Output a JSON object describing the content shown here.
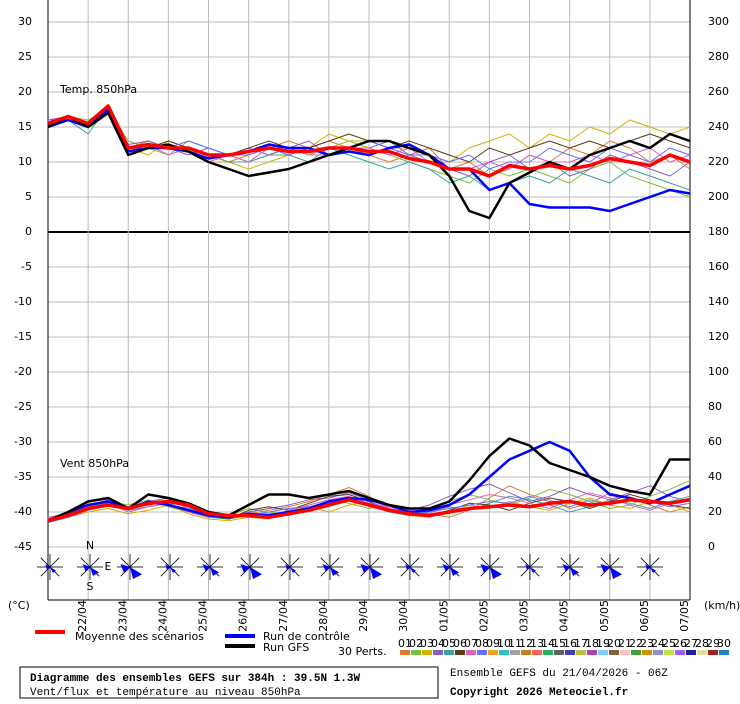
{
  "chart_data": {
    "type": "line",
    "title": "Diagramme des ensembles GEFS sur 384h : 39.5N 1.3W",
    "subtitle": "Vent/flux et température au niveau 850hPa",
    "run_info": "Ensemble GEFS du 21/04/2026 - 06Z",
    "copyright": "Copyright 2026 Meteociel.fr",
    "y_label": "(°C)",
    "y2_label": "(km/h)",
    "temp_label": "Temp. 850hPa",
    "wind_label": "Vent 850hPa",
    "compass": [
      "N",
      "E",
      "S"
    ],
    "perturbations_label": "30 Perts.",
    "x": [
      0,
      0.5,
      1,
      1.5,
      2,
      2.5,
      3,
      3.5,
      4,
      4.5,
      5,
      5.5,
      6,
      6.5,
      7,
      7.5,
      8,
      8.5,
      9,
      9.5,
      10,
      10.5,
      11,
      11.5,
      12,
      12.5,
      13,
      13.5,
      14,
      14.5,
      15,
      15.5,
      16
    ],
    "xlim": [
      0,
      16
    ],
    "xticks": [
      {
        "value": 1,
        "label": "22/04"
      },
      {
        "value": 2,
        "label": "23/04"
      },
      {
        "value": 3,
        "label": "24/04"
      },
      {
        "value": 4,
        "label": "25/04"
      },
      {
        "value": 5,
        "label": "26/04"
      },
      {
        "value": 6,
        "label": "27/04"
      },
      {
        "value": 7,
        "label": "28/04"
      },
      {
        "value": 8,
        "label": "29/04"
      },
      {
        "value": 9,
        "label": "30/04"
      },
      {
        "value": 10,
        "label": "01/05"
      },
      {
        "value": 11,
        "label": "02/05"
      },
      {
        "value": 12,
        "label": "03/05"
      },
      {
        "value": 13,
        "label": "04/05"
      },
      {
        "value": 14,
        "label": "05/05"
      },
      {
        "value": 15,
        "label": "06/05"
      },
      {
        "value": 16,
        "label": "07/05"
      }
    ],
    "ylim": [
      -45,
      30
    ],
    "yticks": [
      -45,
      -40,
      -35,
      -30,
      -25,
      -20,
      -15,
      -10,
      -5,
      0,
      5,
      10,
      15,
      20,
      25,
      30
    ],
    "y2lim": [
      0,
      300
    ],
    "y2ticks": [
      0,
      20,
      40,
      60,
      80,
      100,
      120,
      140,
      160,
      180,
      200,
      220,
      240,
      260,
      280,
      300
    ],
    "grid": true,
    "series": [
      {
        "name": "Moyenne des scénarios",
        "color": "#ff0000",
        "values": [
          15.5,
          16.5,
          15.5,
          18,
          12,
          12.5,
          12,
          12,
          11,
          11,
          11.5,
          12,
          11.5,
          11.5,
          12,
          12,
          11.5,
          11.5,
          10.5,
          10,
          9,
          9,
          8,
          9.5,
          9,
          9.5,
          9,
          9.5,
          10.5,
          10,
          9.5,
          11,
          10
        ],
        "wind_values": [
          15,
          18,
          22,
          24,
          22,
          25,
          26,
          24,
          19,
          18,
          18,
          17,
          19,
          21,
          24,
          27,
          24,
          21,
          19,
          18,
          20,
          22,
          23,
          24,
          23,
          25,
          26,
          24,
          25,
          27,
          26,
          25,
          27
        ]
      },
      {
        "name": "Run de contrôle",
        "color": "#0000ff",
        "values": [
          15,
          16,
          15,
          17.5,
          11.5,
          12,
          12,
          11.5,
          10.5,
          11,
          11.5,
          12.5,
          12,
          12,
          11,
          11.5,
          11,
          12,
          12.5,
          11,
          9,
          9,
          6,
          7,
          4,
          3.5,
          3.5,
          3.5,
          3,
          4,
          5,
          6,
          5.5
        ],
        "wind_values": [
          15,
          20,
          24,
          26,
          22,
          26,
          24,
          21,
          18,
          17,
          19,
          18,
          20,
          22,
          26,
          28,
          27,
          24,
          20,
          21,
          24,
          30,
          40,
          50,
          55,
          60,
          55,
          40,
          30,
          28,
          25,
          30,
          35
        ]
      },
      {
        "name": "Run GFS",
        "color": "#000000",
        "values": [
          15,
          16.5,
          15,
          17,
          11,
          12,
          12.5,
          11.5,
          10,
          9,
          8,
          8.5,
          9,
          10,
          11,
          12,
          13,
          13,
          12,
          11,
          8,
          3,
          2,
          7,
          8.5,
          10,
          9,
          11,
          12,
          13,
          12,
          14,
          13
        ],
        "wind_values": [
          15,
          20,
          26,
          28,
          22,
          30,
          28,
          25,
          20,
          18,
          24,
          30,
          30,
          28,
          30,
          32,
          28,
          24,
          22,
          22,
          26,
          38,
          52,
          62,
          58,
          48,
          44,
          40,
          35,
          32,
          30,
          50,
          50
        ]
      }
    ],
    "perturbations": [
      {
        "name": "01",
        "color": "#e07b30",
        "values": [
          15,
          16,
          15,
          18,
          12,
          13,
          12,
          12,
          11,
          10,
          11,
          12,
          13,
          12,
          13,
          12,
          11,
          10,
          11,
          12,
          9,
          10,
          8,
          9,
          11,
          10,
          12,
          11,
          13,
          12,
          10,
          11,
          9
        ],
        "wind_values": [
          16,
          19,
          23,
          25,
          22,
          24,
          27,
          22,
          18,
          16,
          19,
          21,
          23,
          26,
          30,
          34,
          29,
          22,
          20,
          19,
          17,
          21,
          28,
          35,
          30,
          27,
          22,
          25,
          31,
          28,
          24,
          20,
          23
        ]
      },
      {
        "name": "02",
        "color": "#7fbf3f",
        "values": [
          15.5,
          16.5,
          16,
          17.5,
          13,
          12,
          11,
          13,
          12,
          11,
          10,
          11,
          12,
          11,
          12,
          13,
          12,
          11,
          10,
          9,
          8,
          7,
          9,
          8,
          9,
          8,
          7,
          9,
          10,
          8,
          7,
          6,
          5
        ],
        "wind_values": [
          14,
          18,
          21,
          26,
          24,
          27,
          23,
          20,
          17,
          18,
          22,
          20,
          18,
          24,
          27,
          25,
          22,
          24,
          19,
          21,
          26,
          30,
          27,
          24,
          28,
          33,
          30,
          26,
          22,
          24,
          29,
          33,
          38
        ]
      },
      {
        "name": "03",
        "color": "#d4b000",
        "values": [
          15,
          16,
          15,
          17,
          12,
          11,
          13,
          12,
          10,
          10,
          9,
          10,
          11,
          12,
          14,
          13,
          13,
          12,
          12,
          11,
          10,
          12,
          13,
          14,
          12,
          14,
          13,
          15,
          14,
          16,
          15,
          14,
          15
        ],
        "wind_values": [
          15,
          17,
          20,
          22,
          19,
          21,
          24,
          19,
          16,
          15,
          17,
          16,
          21,
          23,
          20,
          24,
          26,
          22,
          18,
          17,
          20,
          24,
          22,
          26,
          23,
          21,
          25,
          28,
          24,
          22,
          26,
          24,
          20
        ]
      },
      {
        "name": "04",
        "color": "#8a5cc0",
        "values": [
          16,
          16.5,
          15.5,
          17.5,
          12.5,
          13,
          12,
          11,
          12,
          11,
          12,
          11,
          12,
          13,
          11,
          12,
          12,
          13,
          11,
          10,
          9,
          8,
          10,
          11,
          9,
          10,
          8,
          9,
          11,
          10,
          9,
          8,
          10
        ],
        "wind_values": [
          16,
          20,
          24,
          27,
          23,
          26,
          28,
          24,
          19,
          17,
          20,
          22,
          24,
          27,
          28,
          31,
          27,
          23,
          21,
          24,
          29,
          33,
          36,
          31,
          26,
          29,
          34,
          30,
          27,
          31,
          35,
          29,
          26
        ]
      },
      {
        "name": "05",
        "color": "#3fa0a0",
        "values": [
          15,
          16,
          14,
          18,
          11,
          12,
          12,
          12,
          11,
          10,
          10,
          11,
          11,
          10,
          12,
          11,
          10,
          9,
          10,
          9,
          7,
          8,
          6,
          7,
          8,
          7,
          9,
          8,
          7,
          9,
          8,
          7,
          6
        ],
        "wind_values": [
          15,
          18,
          22,
          24,
          21,
          23,
          25,
          21,
          17,
          16,
          18,
          19,
          20,
          22,
          25,
          28,
          24,
          20,
          18,
          20,
          23,
          21,
          25,
          29,
          27,
          24,
          20,
          23,
          27,
          25,
          22,
          26,
          29
        ]
      },
      {
        "name": "06",
        "color": "#5a3a1a",
        "values": [
          15.5,
          16,
          15,
          17,
          12,
          12,
          13,
          12,
          11,
          11,
          12,
          13,
          12,
          12,
          13,
          14,
          13,
          12,
          13,
          12,
          11,
          10,
          12,
          11,
          12,
          13,
          12,
          13,
          12,
          13,
          14,
          13,
          12
        ],
        "wind_values": [
          15,
          19,
          24,
          26,
          22,
          24,
          26,
          23,
          18,
          16,
          21,
          23,
          21,
          25,
          29,
          30,
          26,
          21,
          19,
          18,
          21,
          25,
          24,
          21,
          25,
          28,
          26,
          22,
          26,
          30,
          27,
          24,
          22
        ]
      },
      {
        "name": "07",
        "color": "#e060c0",
        "values": [
          15,
          16,
          15.5,
          17,
          11.5,
          12.5,
          11,
          12,
          10,
          11,
          10,
          12,
          12,
          11,
          11,
          12,
          12,
          11,
          12,
          10,
          9,
          9,
          10,
          9,
          11,
          10,
          10,
          11,
          10,
          11,
          12,
          10,
          11
        ],
        "wind_values": [
          17,
          19,
          22,
          25,
          20,
          23,
          25,
          20,
          17,
          17,
          19,
          18,
          21,
          24,
          27,
          29,
          25,
          23,
          20,
          19,
          24,
          27,
          30,
          28,
          25,
          22,
          27,
          31,
          28,
          24,
          21,
          25,
          28
        ]
      },
      {
        "name": "08",
        "color": "#6070ff",
        "values": [
          16,
          16,
          15,
          17.5,
          12,
          12,
          12,
          13,
          12,
          11,
          11,
          12,
          11,
          12,
          11,
          12,
          13,
          12,
          11,
          11,
          10,
          11,
          9,
          10,
          10,
          12,
          11,
          10,
          12,
          11,
          10,
          12,
          11
        ],
        "wind_values": [
          14,
          17,
          21,
          24,
          22,
          25,
          24,
          22,
          18,
          17,
          18,
          20,
          22,
          23,
          26,
          27,
          25,
          22,
          19,
          20,
          22,
          24,
          26,
          25,
          29,
          26,
          23,
          27,
          24,
          28,
          26,
          23,
          25
        ]
      },
      {
        "name": "09",
        "color": "#f0a020"
      },
      {
        "name": "10",
        "color": "#30c0c0"
      },
      {
        "name": "11",
        "color": "#a0a0a0"
      },
      {
        "name": "12",
        "color": "#c08020"
      },
      {
        "name": "13",
        "color": "#ff6060"
      },
      {
        "name": "14",
        "color": "#20b060"
      },
      {
        "name": "15",
        "color": "#606060"
      },
      {
        "name": "16",
        "color": "#4040c0"
      },
      {
        "name": "17",
        "color": "#c0c040"
      },
      {
        "name": "18",
        "color": "#b040b0"
      },
      {
        "name": "19",
        "color": "#80d0ff"
      },
      {
        "name": "20",
        "color": "#806040"
      },
      {
        "name": "21",
        "color": "#ffc0c0"
      },
      {
        "name": "22",
        "color": "#40a040"
      },
      {
        "name": "23",
        "color": "#d09000"
      },
      {
        "name": "24",
        "color": "#9090d0"
      },
      {
        "name": "25",
        "color": "#c0e040"
      },
      {
        "name": "26",
        "color": "#a060ff"
      },
      {
        "name": "27",
        "color": "#2020a0"
      },
      {
        "name": "28",
        "color": "#e0e0a0"
      },
      {
        "name": "29",
        "color": "#a02020"
      },
      {
        "name": "30",
        "color": "#2080c0"
      }
    ]
  }
}
